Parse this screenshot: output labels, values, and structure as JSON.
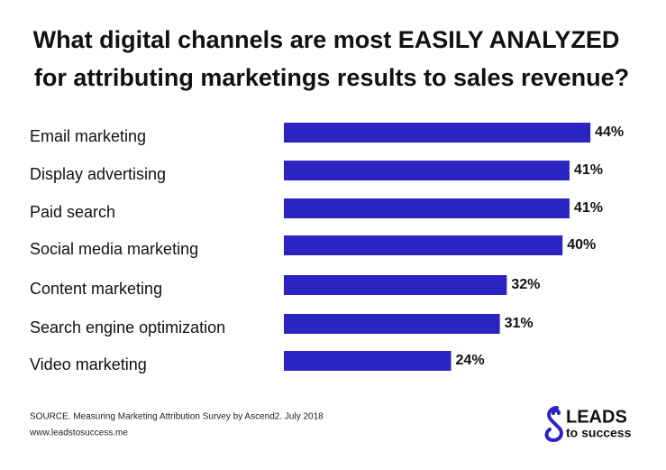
{
  "chart_data": {
    "type": "bar",
    "orientation": "horizontal",
    "title": [
      "What digital channels are most EASILY ANALYZED",
      "for attributing marketings results to sales revenue?"
    ],
    "categories": [
      "Email marketing",
      "Display advertising",
      "Paid search",
      "Social media marketing",
      "Content marketing",
      "Search engine optimization",
      "Video marketing"
    ],
    "values": [
      44,
      41,
      41,
      40,
      32,
      31,
      24
    ],
    "value_labels": [
      "44%",
      "41%",
      "41%",
      "40%",
      "32%",
      "31%",
      "24%"
    ],
    "color": "#2b23c2"
  },
  "source": "SOURCE. Measuring Marketing Attribution Survey by Ascend2. July 2018",
  "website": "www.leadstosuccess.me",
  "logo": {
    "name": "LEADS",
    "tagline": "to success"
  }
}
